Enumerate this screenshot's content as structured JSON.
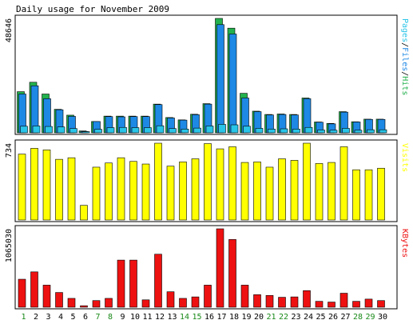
{
  "title": "Daily usage for November 2009",
  "colors": {
    "background": "#ffffff",
    "panel_bg": "#ffffff",
    "border": "#000000",
    "hits": "#23b14d",
    "files": "#1e88e5",
    "pages": "#29c4e8",
    "visits": "#ffff00",
    "kbytes": "#ee1111",
    "weekday_label": "#000000",
    "weekend_label": "#1a8a1a"
  },
  "chart_data": [
    {
      "type": "bar",
      "panel": "hits",
      "title": "Daily usage for November 2009",
      "max_label": "48646",
      "ylim": [
        0,
        48646
      ],
      "legend": [
        {
          "text": "Pages",
          "color": "#29c4e8"
        },
        {
          "text": "/",
          "color": "#000000"
        },
        {
          "text": "Files",
          "color": "#1e88e5"
        },
        {
          "text": "/",
          "color": "#000000"
        },
        {
          "text": "Hits",
          "color": "#23b14d"
        }
      ],
      "categories": [
        "1",
        "2",
        "3",
        "4",
        "5",
        "6",
        "7",
        "8",
        "9",
        "10",
        "11",
        "12",
        "13",
        "14",
        "15",
        "16",
        "17",
        "18",
        "19",
        "20",
        "21",
        "22",
        "23",
        "24",
        "25",
        "26",
        "27",
        "28",
        "29",
        "30"
      ],
      "series": [
        {
          "name": "Hits",
          "values": [
            17500,
            21500,
            16500,
            10000,
            7500,
            800,
            4800,
            7100,
            7100,
            7100,
            7100,
            12200,
            6500,
            5500,
            7900,
            12400,
            48646,
            44500,
            16800,
            9200,
            7800,
            8000,
            7800,
            14800,
            4600,
            4000,
            9000,
            4700,
            5800,
            5800
          ]
        },
        {
          "name": "Files",
          "values": [
            16500,
            20000,
            14500,
            9800,
            7000,
            600,
            4800,
            6900,
            6800,
            6900,
            6900,
            12000,
            6300,
            5400,
            7700,
            12200,
            46000,
            42000,
            14800,
            9000,
            7600,
            7800,
            7600,
            14500,
            4500,
            3800,
            8800,
            4600,
            5700,
            5700
          ]
        },
        {
          "name": "Pages",
          "values": [
            2800,
            2900,
            2700,
            2500,
            1800,
            500,
            1500,
            2200,
            2300,
            2200,
            2200,
            3000,
            1800,
            1600,
            2000,
            2900,
            3600,
            3400,
            2800,
            1900,
            1600,
            1700,
            1600,
            2300,
            1200,
            1100,
            1900,
            1100,
            1300,
            1300
          ]
        }
      ]
    },
    {
      "type": "bar",
      "panel": "visits",
      "max_label": "734",
      "ylim": [
        0,
        734
      ],
      "legend": [
        {
          "text": "Visits",
          "color": "#ffff00"
        }
      ],
      "categories": [
        "1",
        "2",
        "3",
        "4",
        "5",
        "6",
        "7",
        "8",
        "9",
        "10",
        "11",
        "12",
        "13",
        "14",
        "15",
        "16",
        "17",
        "18",
        "19",
        "20",
        "21",
        "22",
        "23",
        "24",
        "25",
        "26",
        "27",
        "28",
        "29",
        "30"
      ],
      "series": [
        {
          "name": "Visits",
          "values": [
            630,
            685,
            670,
            580,
            595,
            140,
            505,
            545,
            595,
            560,
            535,
            734,
            515,
            555,
            585,
            730,
            680,
            700,
            550,
            555,
            505,
            585,
            570,
            734,
            540,
            550,
            700,
            480,
            480,
            495
          ]
        }
      ]
    },
    {
      "type": "bar",
      "panel": "kbytes",
      "max_label": "1065030",
      "ylim": [
        0,
        1065030
      ],
      "legend": [
        {
          "text": "KBytes",
          "color": "#ee1111"
        }
      ],
      "categories": [
        "1",
        "2",
        "3",
        "4",
        "5",
        "6",
        "7",
        "8",
        "9",
        "10",
        "11",
        "12",
        "13",
        "14",
        "15",
        "16",
        "17",
        "18",
        "19",
        "20",
        "21",
        "22",
        "23",
        "24",
        "25",
        "26",
        "27",
        "28",
        "29",
        "30"
      ],
      "series": [
        {
          "name": "KBytes",
          "values": [
            380000,
            480000,
            300000,
            200000,
            120000,
            20000,
            90000,
            120000,
            640000,
            640000,
            100000,
            720000,
            210000,
            120000,
            140000,
            300000,
            1065030,
            920000,
            300000,
            170000,
            160000,
            135000,
            140000,
            225000,
            80000,
            70000,
            190000,
            80000,
            110000,
            90000
          ]
        }
      ]
    }
  ],
  "day_labels": [
    {
      "text": "1",
      "weekend": true
    },
    {
      "text": "2",
      "weekend": false
    },
    {
      "text": "3",
      "weekend": false
    },
    {
      "text": "4",
      "weekend": false
    },
    {
      "text": "5",
      "weekend": false
    },
    {
      "text": "6",
      "weekend": false
    },
    {
      "text": "7",
      "weekend": true
    },
    {
      "text": "8",
      "weekend": true
    },
    {
      "text": "9",
      "weekend": false
    },
    {
      "text": "10",
      "weekend": false
    },
    {
      "text": "11",
      "weekend": false
    },
    {
      "text": "12",
      "weekend": false
    },
    {
      "text": "13",
      "weekend": false
    },
    {
      "text": "14",
      "weekend": true
    },
    {
      "text": "15",
      "weekend": true
    },
    {
      "text": "16",
      "weekend": false
    },
    {
      "text": "17",
      "weekend": false
    },
    {
      "text": "18",
      "weekend": false
    },
    {
      "text": "19",
      "weekend": false
    },
    {
      "text": "20",
      "weekend": false
    },
    {
      "text": "21",
      "weekend": true
    },
    {
      "text": "22",
      "weekend": true
    },
    {
      "text": "23",
      "weekend": false
    },
    {
      "text": "24",
      "weekend": false
    },
    {
      "text": "25",
      "weekend": false
    },
    {
      "text": "26",
      "weekend": false
    },
    {
      "text": "27",
      "weekend": false
    },
    {
      "text": "28",
      "weekend": true
    },
    {
      "text": "29",
      "weekend": true
    },
    {
      "text": "30",
      "weekend": false
    }
  ]
}
